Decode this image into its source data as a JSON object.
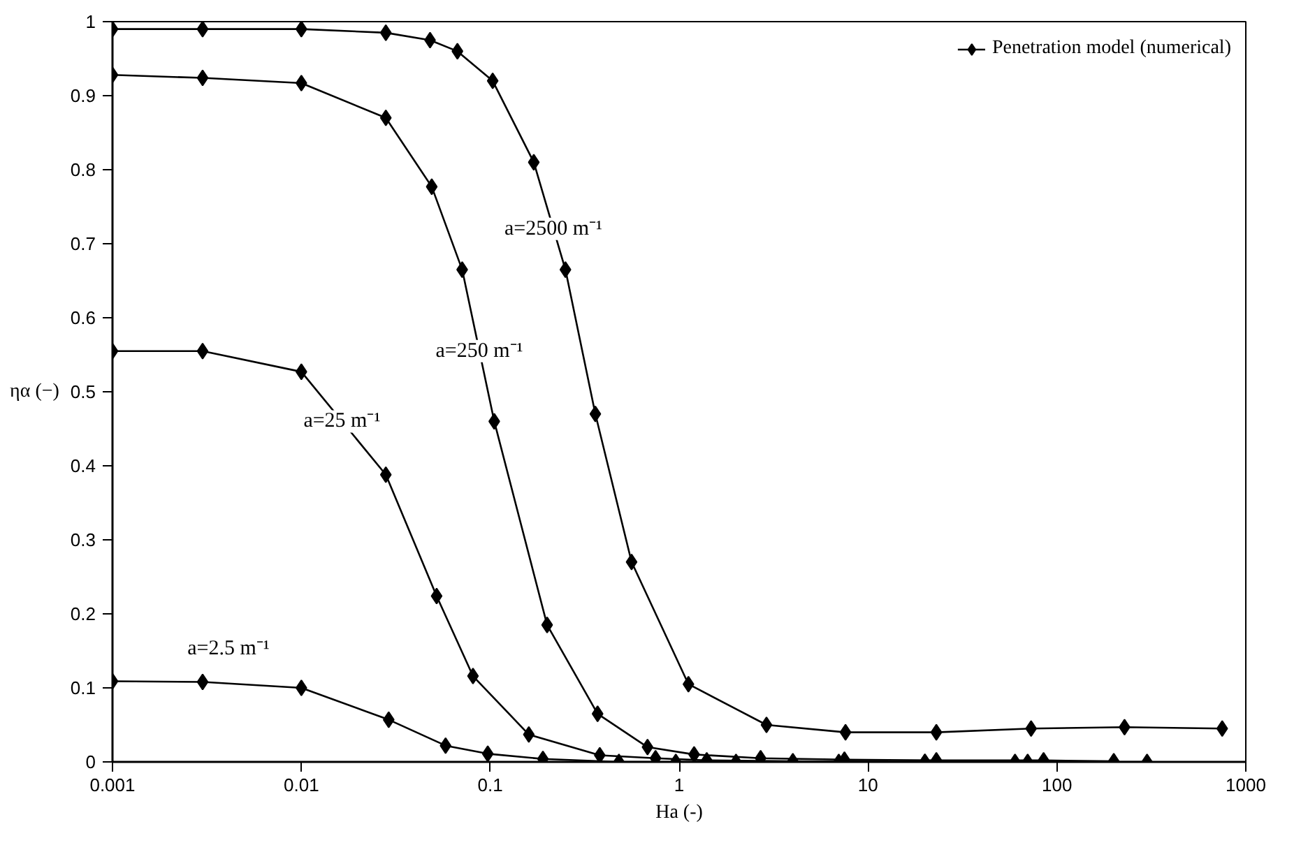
{
  "chart_data": {
    "type": "line",
    "xlabel": "Ha (-)",
    "ylabel": "ηα (−)",
    "log": "x",
    "marker": "diamond",
    "legend": "top right",
    "grid": false,
    "xlim": [
      0.001,
      1000
    ],
    "xticks": [
      0.001,
      0.01,
      0.1,
      1,
      10,
      100,
      1000
    ],
    "ylim": [
      0,
      1
    ],
    "yticks": [
      0,
      0.1,
      0.2,
      0.3,
      0.4,
      0.5,
      0.6,
      0.7,
      0.8,
      0.9,
      1
    ],
    "series": [
      {
        "name": "Penetration model (numerical)",
        "color": "#000000",
        "x": [
          0.001,
          0.003,
          0.01,
          0.028,
          0.048,
          0.067,
          0.103,
          0.17,
          0.25,
          0.36,
          0.56,
          1.12,
          2.9,
          7.6,
          23,
          73,
          228,
          750
        ],
        "values": [
          0.99,
          0.99,
          0.99,
          0.985,
          0.975,
          0.96,
          0.92,
          0.81,
          0.665,
          0.47,
          0.27,
          0.105,
          0.05,
          0.04,
          0.04,
          0.045,
          0.047,
          0.045
        ]
      },
      {
        "color": "#000000",
        "x": [
          0.001,
          0.003,
          0.01,
          0.028,
          0.049,
          0.071,
          0.105,
          0.2,
          0.37,
          0.68,
          1.2,
          2.7,
          7.5,
          23,
          85,
          200
        ],
        "values": [
          0.928,
          0.924,
          0.917,
          0.87,
          0.777,
          0.665,
          0.46,
          0.185,
          0.065,
          0.02,
          0.01,
          0.005,
          0.003,
          0.002,
          0.002,
          0.001
        ]
      },
      {
        "color": "#000000",
        "x": [
          0.001,
          0.003,
          0.01,
          0.028,
          0.052,
          0.081,
          0.16,
          0.38,
          0.75,
          1.4,
          4,
          20,
          70
        ],
        "values": [
          0.555,
          0.555,
          0.527,
          0.388,
          0.224,
          0.116,
          0.037,
          0.009,
          0.005,
          0.002,
          0.001,
          0,
          0
        ]
      },
      {
        "color": "#000000",
        "x": [
          0.001,
          0.003,
          0.01,
          0.029,
          0.058,
          0.097,
          0.19,
          0.48,
          0.96,
          2,
          7,
          20,
          60,
          300
        ],
        "values": [
          0.109,
          0.108,
          0.1,
          0.057,
          0.022,
          0.011,
          0.004,
          0,
          0,
          0,
          0,
          0,
          0,
          0
        ]
      }
    ],
    "annotations": [
      {
        "text": "a=2500 m⁻¹",
        "x": 0.216,
        "y": 0.72
      },
      {
        "text": "a=250 m⁻¹",
        "x": 0.0875,
        "y": 0.555
      },
      {
        "text": "a=25 m⁻¹",
        "x": 0.0164,
        "y": 0.46
      },
      "a=2.5 m⁻¹"
    ]
  }
}
